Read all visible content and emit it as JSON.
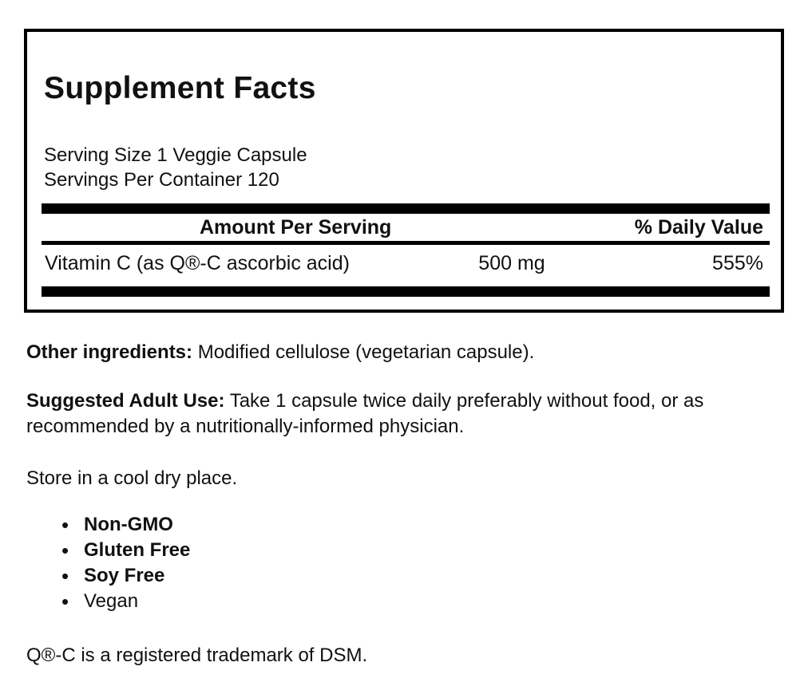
{
  "panel": {
    "title": "Supplement Facts",
    "serving_size": "Serving Size 1 Veggie Capsule",
    "servings_per_container": "Servings Per Container 120",
    "table": {
      "amount_header": "Amount Per Serving",
      "dv_header": "% Daily Value",
      "rows": [
        {
          "name": "Vitamin C (as Q®-C ascorbic acid)",
          "amount": "500 mg",
          "dv": "555%"
        }
      ]
    }
  },
  "sections": {
    "other_ingredients_label": "Other ingredients:",
    "other_ingredients_text": " Modified cellulose (vegetarian capsule).",
    "suggested_use_label": "Suggested Adult Use:",
    "suggested_use_text": " Take 1 capsule twice daily preferably without food, or as recommended by a nutritionally-informed physician.",
    "storage": "Store in a cool dry place.",
    "features": [
      {
        "label": "Non-GMO"
      },
      {
        "label": "Gluten Free"
      },
      {
        "label": "Soy Free"
      },
      {
        "label": "Vegan"
      }
    ],
    "trademark": "Q®-C is a registered trademark of DSM."
  },
  "colors": {
    "text": "#111111",
    "rule": "#000000",
    "background": "#ffffff"
  }
}
